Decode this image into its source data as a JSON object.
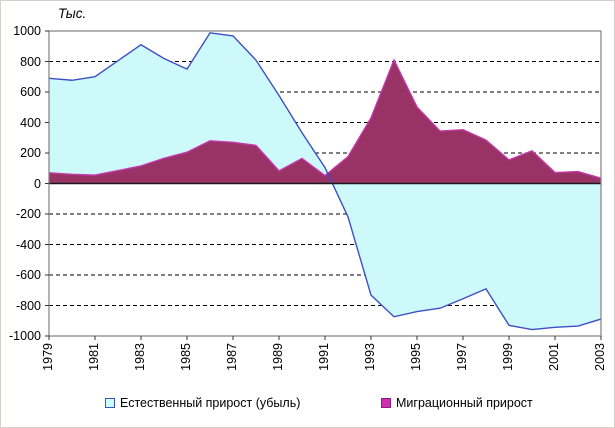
{
  "chart_data": {
    "type": "area",
    "title": "",
    "ylabel": "Тыс.",
    "xlabel": "",
    "x": [
      1979,
      1980,
      1981,
      1982,
      1983,
      1984,
      1985,
      1986,
      1987,
      1988,
      1989,
      1990,
      1991,
      1992,
      1993,
      1994,
      1995,
      1996,
      1997,
      1998,
      1999,
      2000,
      2001,
      2002,
      2003
    ],
    "x_tick_labels": [
      "1979",
      "1981",
      "1983",
      "1985",
      "1987",
      "1989",
      "1991",
      "1993",
      "1995",
      "1997",
      "1999",
      "2001",
      "2003"
    ],
    "y_ticks": [
      1000,
      800,
      600,
      400,
      200,
      0,
      -200,
      -400,
      -600,
      -800,
      -1000
    ],
    "y_tick_labels": [
      "1000",
      "800",
      "600",
      "400",
      "200",
      "0",
      "-200",
      "-400",
      "-600",
      "-800",
      "-1000"
    ],
    "ylim": [
      -1000,
      1000
    ],
    "grid": "horizontal-dashed",
    "legend_position": "bottom",
    "series": [
      {
        "name": "Естественный прирост (убыль)",
        "type": "area",
        "fill": "#CDF9FB",
        "line": "#3E50C4",
        "values": [
          690,
          677,
          700,
          805,
          910,
          820,
          750,
          988,
          968,
          809,
          577,
          333,
          104,
          -219,
          -732,
          -874,
          -840,
          -818,
          -756,
          -691,
          -930,
          -958,
          -943,
          -935,
          -889
        ]
      },
      {
        "name": "Миграционный прирост",
        "type": "area",
        "fill": "#993366",
        "line": "#C637A9",
        "values": [
          70,
          60,
          55,
          85,
          115,
          165,
          205,
          280,
          270,
          250,
          83,
          164,
          52,
          176,
          430,
          810,
          502,
          344,
          353,
          285,
          155,
          214,
          72,
          78,
          35
        ]
      }
    ]
  },
  "legend": {
    "items": [
      {
        "label": "Естественный прирост (убыль)",
        "swatch_fill": "#CCFFFF",
        "swatch_border": "#3E50C4"
      },
      {
        "label": "Миграционный прирост",
        "swatch_fill": "#CC2FB4",
        "swatch_border": "#8A1F7A"
      }
    ]
  },
  "axes": {
    "zero_line_color": "#1a1a1a",
    "plot_border_color": "#808080",
    "grid_color": "#000000",
    "tick_color": "#333333"
  }
}
